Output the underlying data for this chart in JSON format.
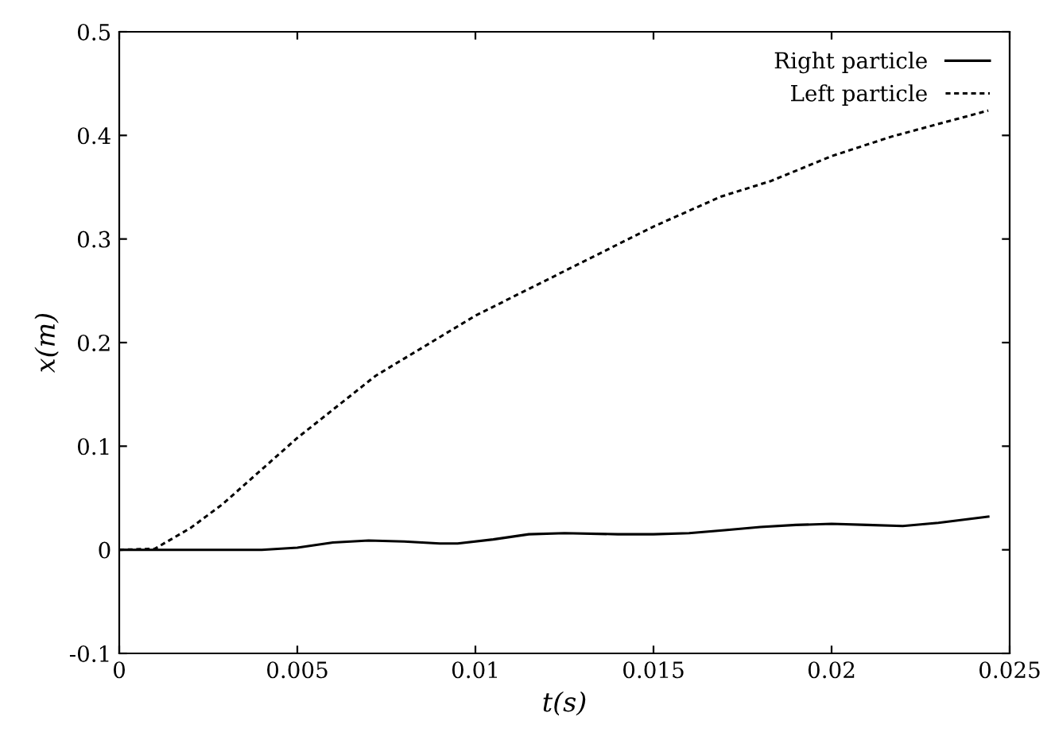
{
  "chart_data": {
    "type": "line",
    "xlabel": "t(s)",
    "ylabel": "x(m)",
    "xlim": [
      0,
      0.025
    ],
    "ylim": [
      -0.1,
      0.5
    ],
    "xticks": [
      0,
      0.005,
      0.01,
      0.015,
      0.02,
      0.025
    ],
    "yticks": [
      -0.1,
      0,
      0.1,
      0.2,
      0.3,
      0.4,
      0.5
    ],
    "grid": false,
    "legend": "top right",
    "series": [
      {
        "name": "Right particle",
        "color": "#000000",
        "line_style": "solid",
        "x": [
          0,
          0.002,
          0.004,
          0.005,
          0.006,
          0.007,
          0.008,
          0.009,
          0.0095,
          0.0105,
          0.0115,
          0.0125,
          0.014,
          0.015,
          0.016,
          0.017,
          0.018,
          0.019,
          0.02,
          0.021,
          0.022,
          0.023,
          0.0244
        ],
        "values": [
          0,
          0,
          0,
          0.002,
          0.007,
          0.009,
          0.008,
          0.006,
          0.006,
          0.01,
          0.015,
          0.016,
          0.015,
          0.015,
          0.016,
          0.019,
          0.022,
          0.024,
          0.025,
          0.024,
          0.023,
          0.026,
          0.032
        ]
      },
      {
        "name": "Left particle",
        "color": "#000000",
        "line_style": "dashed",
        "x": [
          0,
          0.001,
          0.002,
          0.0029,
          0.005,
          0.0072,
          0.01,
          0.0125,
          0.015,
          0.0169,
          0.0183,
          0.02,
          0.0217,
          0.0244
        ],
        "values": [
          0,
          0.001,
          0.021,
          0.044,
          0.108,
          0.168,
          0.226,
          0.269,
          0.312,
          0.341,
          0.356,
          0.38,
          0.399,
          0.424
        ]
      }
    ]
  }
}
